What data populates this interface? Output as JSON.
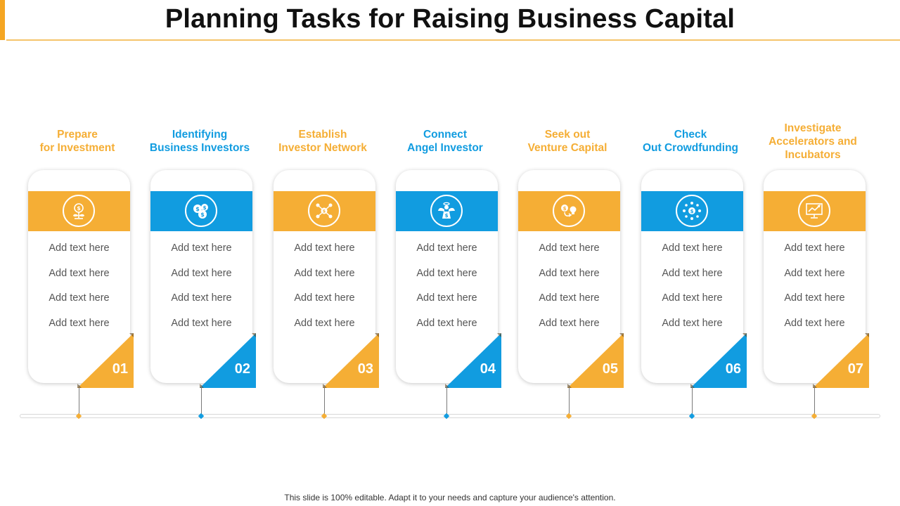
{
  "slide": {
    "title": "Planning Tasks for Raising Business Capital",
    "footer": "This slide is 100% editable. Adapt it to your needs and capture your audience's attention."
  },
  "colors": {
    "orange": "#f5ae35",
    "blue": "#119ce0"
  },
  "steps": [
    {
      "number": "01",
      "title": "Prepare\nfor Investment",
      "color": "orange",
      "icon": "investment-plant-icon",
      "items": [
        "Add text here",
        "Add text here",
        "Add text here",
        "Add text here"
      ]
    },
    {
      "number": "02",
      "title": "Identifying\nBusiness Investors",
      "color": "blue",
      "icon": "dollar-coins-icon",
      "items": [
        "Add text here",
        "Add text here",
        "Add text here",
        "Add text here"
      ]
    },
    {
      "number": "03",
      "title": "Establish\nInvestor Network",
      "color": "orange",
      "icon": "network-nodes-icon",
      "items": [
        "Add text here",
        "Add text here",
        "Add text here",
        "Add text here"
      ]
    },
    {
      "number": "04",
      "title": "Connect\nAngel Investor",
      "color": "blue",
      "icon": "angel-money-bag-icon",
      "items": [
        "Add text here",
        "Add text here",
        "Add text here",
        "Add text here"
      ]
    },
    {
      "number": "05",
      "title": "Seek out\nVenture Capital",
      "color": "orange",
      "icon": "dollar-idea-bulb-icon",
      "items": [
        "Add text here",
        "Add text here",
        "Add text here",
        "Add text here"
      ]
    },
    {
      "number": "06",
      "title": "Check\nOut Crowdfunding",
      "color": "blue",
      "icon": "crowdfunding-icon",
      "items": [
        "Add text here",
        "Add text here",
        "Add text here",
        "Add text here"
      ]
    },
    {
      "number": "07",
      "title": "Investigate\nAccelerators and\nIncubators",
      "color": "orange",
      "icon": "growth-chart-monitor-icon",
      "items": [
        "Add text here",
        "Add text here",
        "Add text here",
        "Add text here"
      ]
    }
  ]
}
